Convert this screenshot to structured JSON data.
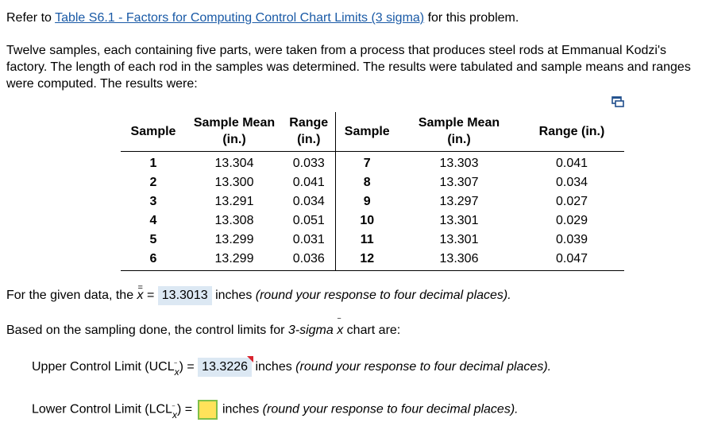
{
  "intro": {
    "prefix": "Refer to ",
    "link_text": "Table S6.1 - Factors for Computing Control Chart Limits (3 sigma)",
    "suffix": " for this problem."
  },
  "description": "Twelve samples, each containing five parts, were taken from a process that produces steel rods at Emmanual Kodzi's factory. The length of each rod in the samples was determined. The results were tabulated and sample means and ranges were computed. The results were:",
  "table": {
    "headers": [
      "Sample",
      "Sample Mean (in.)",
      "Range (in.)",
      "Sample",
      "Sample Mean (in.)",
      "Range (in.)"
    ],
    "header_lines": [
      [
        "Sample"
      ],
      [
        "Sample Mean",
        "(in.)"
      ],
      [
        "Range",
        "(in.)"
      ],
      [
        "Sample"
      ],
      [
        "Sample Mean",
        "(in.)"
      ],
      [
        "Range (in.)"
      ]
    ],
    "rows": [
      [
        "1",
        "13.304",
        "0.033",
        "7",
        "13.303",
        "0.041"
      ],
      [
        "2",
        "13.300",
        "0.041",
        "8",
        "13.307",
        "0.034"
      ],
      [
        "3",
        "13.291",
        "0.034",
        "9",
        "13.297",
        "0.027"
      ],
      [
        "4",
        "13.308",
        "0.051",
        "10",
        "13.301",
        "0.029"
      ],
      [
        "5",
        "13.299",
        "0.031",
        "11",
        "13.301",
        "0.039"
      ],
      [
        "6",
        "13.299",
        "0.036",
        "12",
        "13.306",
        "0.047"
      ]
    ]
  },
  "q1": {
    "prefix": "For the given data, the ",
    "symbol": "x",
    "equals": " = ",
    "answer": "13.3013",
    "suffix": " inches ",
    "note": "(round your response to four decimal places)."
  },
  "q2": {
    "prefix": "Based on the sampling done, the control limits for ",
    "em": "3-sigma",
    "symbol": "x",
    "suffix": " chart are:"
  },
  "ucl": {
    "label": "Upper Control Limit (UCL",
    "sub": "x",
    "close": ") = ",
    "answer": "13.3226",
    "suffix": " inches ",
    "note": "(round your response to four decimal places)."
  },
  "lcl": {
    "label": "Lower Control Limit (LCL",
    "sub": "x",
    "close": ") = ",
    "answer": "",
    "suffix": " inches ",
    "note": "(round your response to four decimal places)."
  },
  "colors": {
    "link": "#1a5aa6",
    "answer_bg": "#dce8f3",
    "input_bg": "#ffe25a",
    "input_border": "#7fbf4a",
    "flag": "#d9232e"
  },
  "icons": {
    "copy": "copy-icon"
  }
}
